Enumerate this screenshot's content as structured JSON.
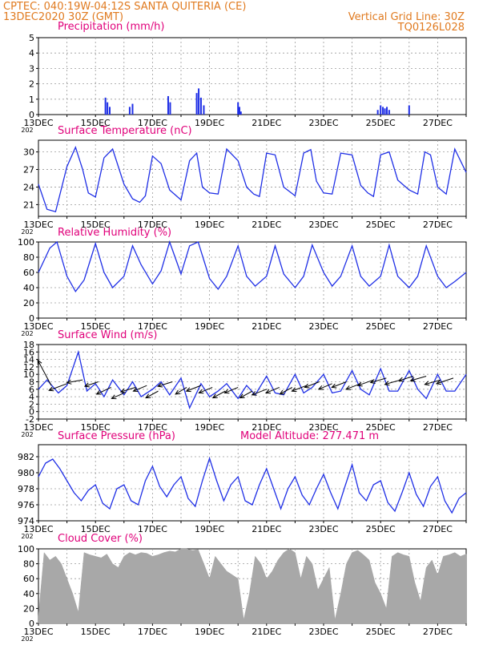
{
  "header": {
    "left_line1": "CPTEC:   040:19W-04:12S   SANTA QUITERIA (CE)",
    "left_line2": "13DEC2020 30Z (GMT)",
    "right_line1": "Vertical Grid Line: 30Z",
    "right_line2": "TQ0126L028"
  },
  "colors": {
    "header_text": "#e07a1f",
    "panel_title": "#e0007a",
    "series_line": "#1f2fe6",
    "precip_bar": "#1f2fe6",
    "wind_arrow": "#000000",
    "cloud_fill": "#a8a8a8",
    "grid": "#9a9a9a"
  },
  "x_axis": {
    "tick_labels": [
      "13DEC",
      "15DEC",
      "17DEC",
      "19DEC",
      "21DEC",
      "23DEC",
      "25DEC",
      "27DEC"
    ],
    "cut_year_label": "202"
  },
  "chart_data": [
    {
      "type": "bar",
      "title": "Precipitation (mm/h)",
      "ylim": [
        0,
        5
      ],
      "yticks": [
        "0",
        "1",
        "2",
        "3",
        "4",
        "5"
      ],
      "x_days": [
        2.35,
        2.42,
        2.5,
        3.2,
        3.3,
        4.55,
        4.62,
        5.55,
        5.62,
        5.7,
        5.8,
        7.0,
        7.05,
        7.1,
        11.9,
        12.0,
        12.08,
        12.15,
        12.22,
        12.3,
        13.0
      ],
      "values": [
        1.1,
        0.8,
        0.5,
        0.5,
        0.7,
        1.2,
        0.8,
        1.4,
        1.7,
        1.1,
        0.6,
        0.8,
        0.5,
        0.2,
        0.3,
        0.6,
        0.5,
        0.4,
        0.5,
        0.3,
        0.6
      ]
    },
    {
      "type": "line",
      "title": "Surface Temperature (nC)",
      "ylim": [
        19,
        32
      ],
      "yticks": [
        "21",
        "24",
        "27",
        "30"
      ],
      "series": [
        {
          "x_days": [
            0,
            0.3,
            0.6,
            1.0,
            1.3,
            1.55,
            1.75,
            2.0,
            2.3,
            2.6,
            3.0,
            3.3,
            3.55,
            3.75,
            4.0,
            4.3,
            4.6,
            5.0,
            5.3,
            5.55,
            5.75,
            6.0,
            6.3,
            6.6,
            7.0,
            7.3,
            7.55,
            7.75,
            8.0,
            8.3,
            8.6,
            9.0,
            9.3,
            9.55,
            9.75,
            10.0,
            10.3,
            10.6,
            11.0,
            11.3,
            11.55,
            11.75,
            12.0,
            12.3,
            12.6,
            13.0,
            13.3,
            13.55,
            13.75,
            14.0,
            14.3,
            14.6,
            15.0
          ],
          "values": [
            24.5,
            20.2,
            19.8,
            27.5,
            30.8,
            27.0,
            23.0,
            22.3,
            29.0,
            30.5,
            24.5,
            22.0,
            21.4,
            22.5,
            29.3,
            28.0,
            23.5,
            21.8,
            28.5,
            29.8,
            24.0,
            23.0,
            22.8,
            30.5,
            28.5,
            24.0,
            22.8,
            22.4,
            29.8,
            29.5,
            24.0,
            22.5,
            29.8,
            30.4,
            25.0,
            23.0,
            22.8,
            29.8,
            29.5,
            24.3,
            23.0,
            22.4,
            29.5,
            30.0,
            25.2,
            23.5,
            22.8,
            30.0,
            29.5,
            24.0,
            22.8,
            30.5,
            26.5
          ]
        }
      ]
    },
    {
      "type": "line",
      "title": "Relative Humidity (%)",
      "ylim": [
        0,
        100
      ],
      "yticks": [
        "0",
        "20",
        "40",
        "60",
        "80",
        "100"
      ],
      "series": [
        {
          "x_days": [
            0,
            0.4,
            0.65,
            1.0,
            1.3,
            1.6,
            2.0,
            2.3,
            2.6,
            3.0,
            3.3,
            3.6,
            4.0,
            4.3,
            4.6,
            5.0,
            5.3,
            5.6,
            6.0,
            6.3,
            6.6,
            7.0,
            7.3,
            7.6,
            8.0,
            8.3,
            8.6,
            9.0,
            9.3,
            9.6,
            10.0,
            10.3,
            10.6,
            11.0,
            11.3,
            11.6,
            12.0,
            12.3,
            12.6,
            13.0,
            13.3,
            13.6,
            14.0,
            14.3,
            14.6,
            15.0
          ],
          "values": [
            60,
            92,
            100,
            55,
            35,
            50,
            98,
            60,
            40,
            55,
            95,
            70,
            45,
            62,
            100,
            58,
            95,
            100,
            52,
            38,
            55,
            95,
            55,
            42,
            55,
            95,
            58,
            40,
            55,
            96,
            60,
            42,
            55,
            95,
            55,
            42,
            55,
            96,
            55,
            40,
            55,
            95,
            55,
            40,
            48,
            60
          ]
        }
      ]
    },
    {
      "type": "line",
      "title": "Surface Wind (m/s)",
      "ylim": [
        -2,
        18
      ],
      "yticks": [
        "-2",
        "0",
        "2",
        "4",
        "6",
        "8",
        "10",
        "12",
        "14",
        "16",
        "18"
      ],
      "series": [
        {
          "x_days": [
            0,
            0.3,
            0.7,
            1.0,
            1.4,
            1.7,
            2.0,
            2.3,
            2.6,
            3.0,
            3.3,
            3.6,
            4.0,
            4.3,
            4.6,
            5.0,
            5.3,
            5.7,
            6.0,
            6.3,
            6.6,
            7.0,
            7.3,
            7.6,
            8.0,
            8.3,
            8.6,
            9.0,
            9.3,
            9.6,
            10.0,
            10.3,
            10.6,
            11.0,
            11.3,
            11.6,
            12.0,
            12.3,
            12.6,
            13.0,
            13.3,
            13.6,
            14.0,
            14.3,
            14.6,
            15.0
          ],
          "values": [
            6.0,
            8.5,
            5.0,
            7.0,
            16.0,
            5.5,
            7.5,
            4.0,
            8.5,
            4.5,
            8.0,
            4.0,
            6.0,
            8.0,
            4.5,
            9.0,
            1.0,
            7.5,
            4.0,
            5.5,
            7.5,
            3.5,
            7.0,
            4.5,
            9.5,
            5.0,
            4.5,
            10.0,
            5.0,
            6.5,
            10.0,
            5.0,
            5.5,
            11.0,
            6.0,
            4.5,
            11.5,
            5.5,
            5.5,
            11.0,
            6.0,
            3.5,
            10.0,
            5.5,
            5.5,
            10.0
          ]
        }
      ],
      "wind_vectors": {
        "x_days": [
          0.45,
          1.0,
          1.55,
          2.1,
          2.55,
          3.0,
          3.4,
          3.8,
          4.2,
          4.7,
          5.2,
          5.7,
          6.1,
          6.55,
          7.0,
          7.5,
          8.0,
          8.45,
          8.9,
          9.4,
          9.85,
          10.3,
          10.8,
          11.3,
          11.75,
          12.2,
          12.7,
          13.15,
          13.6,
          14.1,
          14.55
        ],
        "y_values": [
          7,
          7.5,
          8.5,
          8,
          6.5,
          5,
          6.5,
          7,
          5.5,
          8,
          6.5,
          7,
          6.5,
          5.5,
          6.5,
          5.5,
          6,
          6.5,
          6.5,
          7,
          8,
          7.5,
          8,
          7.5,
          8.5,
          9,
          8.5,
          9.5,
          9.5,
          8.5,
          9
        ],
        "u": [
          -1.2,
          -1.6,
          -1.4,
          -1.2,
          -1.3,
          -1.1,
          -1.3,
          -1.2,
          -1.1,
          -1.3,
          -1.0,
          -1.3,
          -1.2,
          -1.1,
          -1.2,
          -1.1,
          -1.3,
          -1.2,
          -1.1,
          -1.3,
          -1.3,
          -1.2,
          -1.3,
          -1.3,
          -1.4,
          -1.4,
          -1.4,
          -1.3,
          -1.4,
          -1.4,
          -1.5
        ],
        "v": [
          4.5,
          -1.2,
          -0.5,
          -0.8,
          -1.2,
          -1.0,
          -0.8,
          -1.0,
          -1.2,
          -0.8,
          -1.2,
          -1.0,
          -1.0,
          -1.2,
          -1.0,
          -1.2,
          -1.0,
          -1.0,
          -1.2,
          -1.0,
          -1.0,
          -1.0,
          -1.0,
          -1.0,
          -1.0,
          -0.8,
          -0.8,
          -0.8,
          -0.8,
          -0.8,
          -1.0
        ]
      }
    },
    {
      "type": "line",
      "title": "Surface Pressure (hPa)",
      "annotation": "Model Altitude: 277.471  m",
      "ylim": [
        974,
        983.5
      ],
      "yticks": [
        "974",
        "976",
        "978",
        "980",
        "982"
      ],
      "series": [
        {
          "x_days": [
            0,
            0.25,
            0.5,
            0.75,
            1.0,
            1.25,
            1.5,
            1.75,
            2.0,
            2.25,
            2.5,
            2.75,
            3.0,
            3.25,
            3.5,
            3.75,
            4.0,
            4.25,
            4.5,
            4.75,
            5.0,
            5.25,
            5.5,
            5.75,
            6.0,
            6.25,
            6.5,
            6.75,
            7.0,
            7.25,
            7.5,
            7.75,
            8.0,
            8.25,
            8.5,
            8.75,
            9.0,
            9.25,
            9.5,
            9.75,
            10.0,
            10.25,
            10.5,
            10.75,
            11.0,
            11.25,
            11.5,
            11.75,
            12.0,
            12.25,
            12.5,
            12.75,
            13.0,
            13.25,
            13.5,
            13.75,
            14.0,
            14.25,
            14.5,
            14.75,
            15.0
          ],
          "values": [
            979.5,
            981.2,
            981.7,
            980.5,
            979.0,
            977.5,
            976.5,
            977.8,
            978.5,
            976.2,
            975.5,
            978.0,
            978.5,
            976.5,
            976.0,
            979.0,
            980.8,
            978.3,
            977.0,
            978.5,
            979.5,
            976.8,
            975.8,
            979.0,
            981.8,
            979.0,
            976.5,
            978.5,
            979.5,
            976.5,
            976.0,
            978.5,
            980.5,
            978.0,
            975.5,
            978.0,
            979.5,
            977.2,
            976.0,
            978.0,
            979.8,
            977.5,
            975.5,
            978.3,
            981.0,
            977.5,
            976.5,
            978.5,
            979.0,
            976.3,
            975.2,
            977.5,
            980.0,
            977.3,
            975.8,
            978.3,
            979.5,
            976.5,
            975.0,
            976.8,
            977.5
          ]
        }
      ]
    },
    {
      "type": "area",
      "title": "Cloud Cover (%)",
      "ylim": [
        0,
        100
      ],
      "yticks": [
        "0",
        "20",
        "40",
        "60",
        "80",
        "100"
      ],
      "x_days": [
        0,
        0.2,
        0.4,
        0.6,
        0.8,
        1.0,
        1.2,
        1.4,
        1.6,
        1.8,
        2.0,
        2.2,
        2.4,
        2.6,
        2.8,
        3.0,
        3.2,
        3.4,
        3.6,
        3.8,
        4.0,
        4.2,
        4.4,
        4.6,
        4.8,
        5.0,
        5.2,
        5.4,
        5.6,
        5.8,
        6.0,
        6.2,
        6.4,
        6.6,
        6.8,
        7.0,
        7.2,
        7.4,
        7.6,
        7.8,
        8.0,
        8.2,
        8.4,
        8.6,
        8.8,
        9.0,
        9.2,
        9.4,
        9.6,
        9.8,
        10.0,
        10.2,
        10.4,
        10.6,
        10.8,
        11.0,
        11.2,
        11.4,
        11.6,
        11.8,
        12.0,
        12.2,
        12.4,
        12.6,
        12.8,
        13.0,
        13.2,
        13.4,
        13.6,
        13.8,
        14.0,
        14.2,
        14.4,
        14.6,
        14.8,
        15.0
      ],
      "values": [
        10,
        95,
        85,
        90,
        80,
        60,
        40,
        15,
        95,
        92,
        90,
        88,
        93,
        80,
        75,
        90,
        95,
        92,
        95,
        94,
        90,
        92,
        95,
        97,
        96,
        100,
        100,
        98,
        99,
        80,
        60,
        90,
        80,
        70,
        65,
        60,
        5,
        40,
        90,
        80,
        60,
        70,
        85,
        95,
        100,
        95,
        60,
        90,
        80,
        45,
        60,
        75,
        5,
        40,
        80,
        95,
        98,
        92,
        85,
        55,
        40,
        20,
        90,
        95,
        92,
        90,
        55,
        30,
        75,
        85,
        65,
        90,
        92,
        95,
        90,
        93
      ]
    }
  ]
}
